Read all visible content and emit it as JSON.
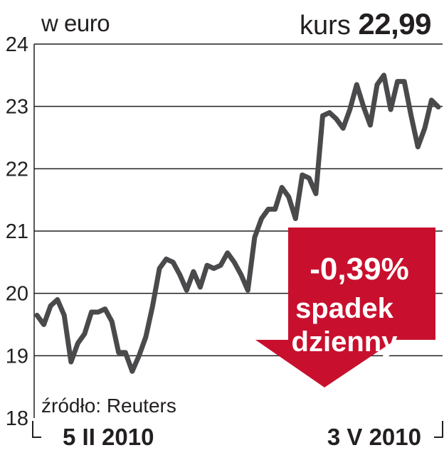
{
  "unit_label": "w euro",
  "price": {
    "label": "kurs",
    "value": "22,99"
  },
  "source": "źródło: Reuters",
  "badge": {
    "change": "-0,39%",
    "line1": "spadek",
    "line2": "dzienny",
    "color": "#c8102e"
  },
  "colors": {
    "line": "#4a4a4c",
    "grid": "#231f20",
    "text": "#231f20"
  },
  "chart_data": {
    "type": "line",
    "x_start_label": "5 II 2010",
    "x_end_label": "3 V 2010",
    "ylim": [
      18,
      24
    ],
    "yticks": [
      18,
      19,
      20,
      21,
      22,
      23,
      24
    ],
    "grid": true,
    "series": [
      {
        "values": [
          19.65,
          19.5,
          19.8,
          19.9,
          19.65,
          18.9,
          19.2,
          19.35,
          19.7,
          19.7,
          19.75,
          19.55,
          19.05,
          19.05,
          18.75,
          19.0,
          19.3,
          19.8,
          20.4,
          20.55,
          20.5,
          20.3,
          20.05,
          20.35,
          20.1,
          20.45,
          20.4,
          20.45,
          20.65,
          20.5,
          20.3,
          20.05,
          20.9,
          21.2,
          21.35,
          21.35,
          21.7,
          21.55,
          21.2,
          21.9,
          21.85,
          21.6,
          22.85,
          22.9,
          22.8,
          22.65,
          22.95,
          23.35,
          23.0,
          22.7,
          23.35,
          23.5,
          22.95,
          23.4,
          23.4,
          22.85,
          22.35,
          22.65,
          23.1,
          22.99
        ]
      }
    ]
  }
}
